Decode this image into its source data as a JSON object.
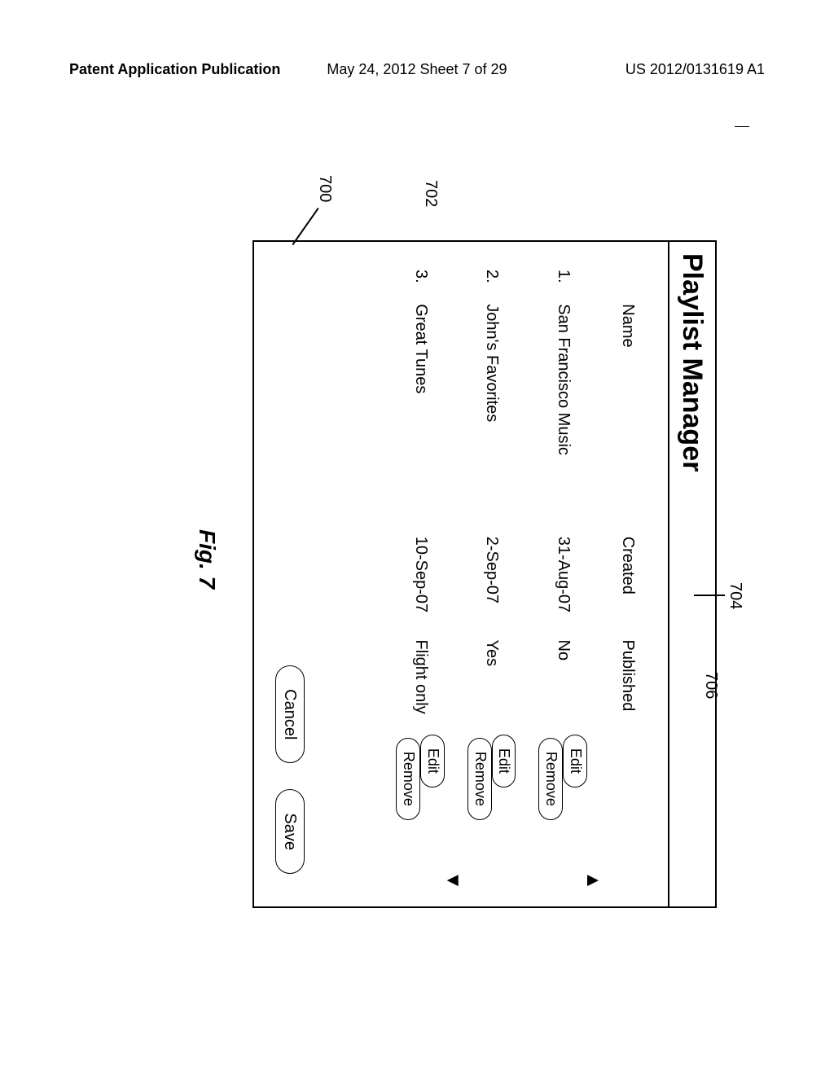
{
  "header": {
    "left": "Patent Application Publication",
    "center": "May 24, 2012  Sheet 7 of 29",
    "right": "US 2012/0131619 A1"
  },
  "figure": {
    "caption": "Fig. 7",
    "panel_title": "Playlist Manager",
    "reference_numerals": {
      "panel": "700",
      "list": "702",
      "published_column": "704",
      "action_buttons": "706"
    },
    "columns": {
      "name": "Name",
      "created": "Created",
      "published": "Published"
    },
    "rows": [
      {
        "n": "1.",
        "name": "San Francisco Music",
        "created": "31-Aug-07",
        "published": "No",
        "edit": "Edit",
        "remove": "Remove"
      },
      {
        "n": "2.",
        "name": "John's Favorites",
        "created": "2-Sep-07",
        "published": "Yes",
        "edit": "Edit",
        "remove": "Remove"
      },
      {
        "n": "3.",
        "name": "Great Tunes",
        "created": "10-Sep-07",
        "published": "Flight only",
        "edit": "Edit",
        "remove": "Remove"
      }
    ],
    "footer": {
      "cancel": "Cancel",
      "save": "Save"
    },
    "scroll": {
      "up": "▲",
      "down": "▼"
    }
  }
}
